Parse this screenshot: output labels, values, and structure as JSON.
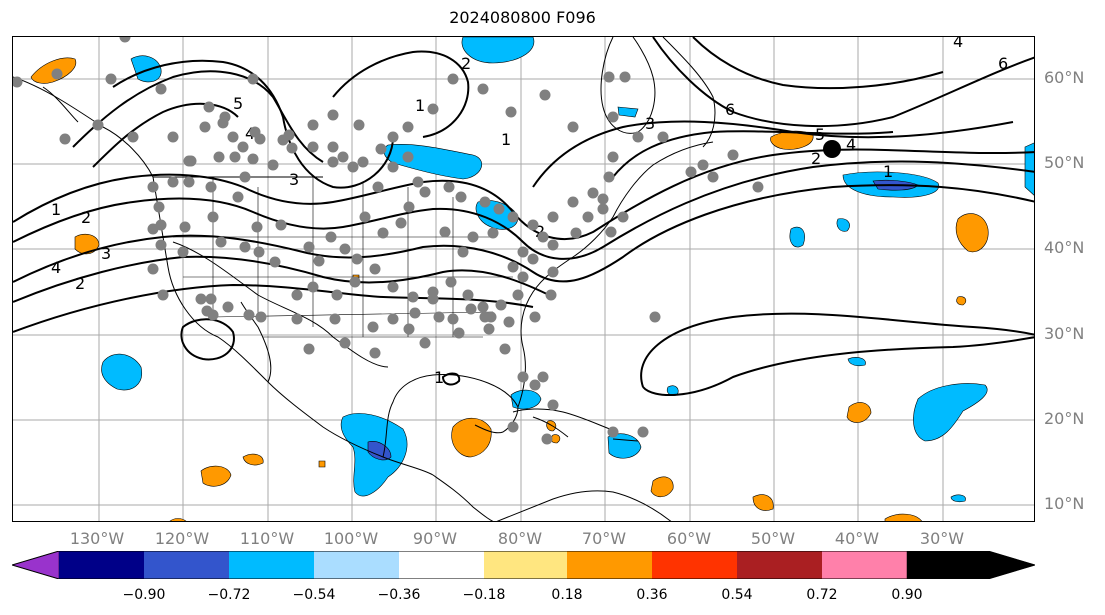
{
  "title": "2024080800 F096",
  "lat_labels": [
    "60°N",
    "50°N",
    "40°N",
    "30°N",
    "20°N",
    "10°N"
  ],
  "lon_labels": [
    "130°W",
    "120°W",
    "110°W",
    "100°W",
    "90°W",
    "80°W",
    "70°W",
    "60°W",
    "50°W",
    "40°W",
    "30°W"
  ],
  "colorbar": {
    "colors": [
      "#9933cc",
      "#000088",
      "#3355cc",
      "#00bbff",
      "#aaddff",
      "#ffffff",
      "#ffe680",
      "#ff9900",
      "#ff3300",
      "#aa1f22",
      "#ff80aa"
    ],
    "tick_labels": [
      "−0.90",
      "−0.72",
      "−0.54",
      "−0.36",
      "−0.18",
      "0.18",
      "0.36",
      "0.54",
      "0.72",
      "0.90"
    ]
  },
  "contour_labels": [
    "1",
    "2",
    "3",
    "4",
    "5",
    "6",
    "1",
    "2",
    "3",
    "4",
    "2",
    "4",
    "6",
    "1",
    "1",
    "2",
    "5",
    "4",
    "3",
    "1",
    "2"
  ],
  "colors": {
    "station_dot": "#808080",
    "highlight_dot": "#000000",
    "positive_fill": "#ff9900",
    "negative_fill": "#00bbff",
    "strong_negative_fill": "#3355cc"
  }
}
